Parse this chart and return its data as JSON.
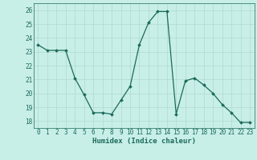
{
  "x": [
    0,
    1,
    2,
    3,
    4,
    5,
    6,
    7,
    8,
    9,
    10,
    11,
    12,
    13,
    14,
    15,
    16,
    17,
    18,
    19,
    20,
    21,
    22,
    23
  ],
  "y": [
    23.5,
    23.1,
    23.1,
    23.1,
    21.1,
    19.9,
    18.6,
    18.6,
    18.5,
    19.5,
    20.5,
    23.5,
    25.1,
    25.9,
    25.9,
    18.5,
    20.9,
    21.1,
    20.6,
    20.0,
    19.2,
    18.6,
    17.9,
    17.9
  ],
  "line_color": "#1a6b5a",
  "marker": "D",
  "marker_size": 2.0,
  "bg_color": "#c8eee8",
  "grid_color": "#b0d8d0",
  "xlabel": "Humidex (Indice chaleur)",
  "ylim": [
    17.5,
    26.5
  ],
  "yticks": [
    18,
    19,
    20,
    21,
    22,
    23,
    24,
    25,
    26
  ],
  "xtick_labels": [
    "0",
    "1",
    "2",
    "3",
    "4",
    "5",
    "6",
    "7",
    "8",
    "9",
    "10",
    "11",
    "12",
    "13",
    "14",
    "15",
    "16",
    "17",
    "18",
    "19",
    "20",
    "21",
    "22",
    "23"
  ],
  "xlabel_fontsize": 6.5,
  "tick_fontsize": 5.5,
  "linewidth": 0.9
}
